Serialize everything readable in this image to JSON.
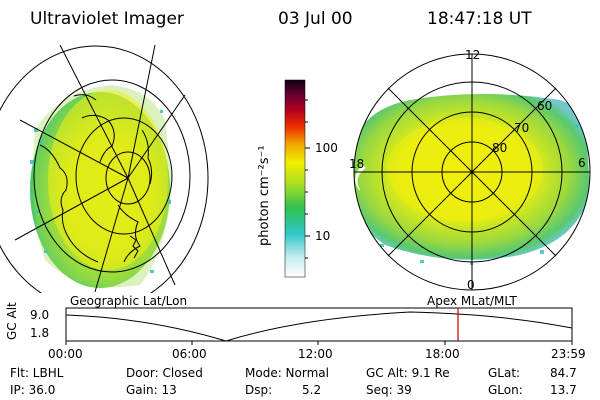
{
  "header": {
    "instrument": "Ultraviolet Imager",
    "date": "03 Jul 00",
    "time": "18:47:18 UT"
  },
  "left_panel": {
    "caption": "Geographic Lat/Lon"
  },
  "right_panel": {
    "caption": "Apex MLat/MLT",
    "mlt_labels": [
      "12",
      "18",
      "6",
      "0"
    ],
    "lat_labels": [
      "60",
      "70",
      "80"
    ]
  },
  "colorbar": {
    "unit_label": "photon cm⁻²s⁻¹",
    "ticks": [
      "100",
      "10"
    ]
  },
  "timeline": {
    "ylabel": "GC Alt",
    "yticks": [
      "9.0",
      "1.8"
    ],
    "xticks": [
      "00:00",
      "06:00",
      "12:00",
      "18:00",
      "23:59"
    ]
  },
  "footer": {
    "row1": [
      "Flt: LBHL",
      "Door: Closed",
      "Mode: Normal",
      "GC Alt: 9.1 Re",
      "GLat:",
      "84.7"
    ],
    "row2": [
      "IP: 36.0",
      "Gain: 13",
      "Dsp:",
      "5.2",
      "Seq: 39",
      "GLon:",
      "13.7"
    ]
  },
  "colors": {
    "marker": "#c00000",
    "axis": "#000000",
    "glow_yellow": "#f2f000",
    "glow_green": "#58d050",
    "glow_teal": "#40c0c0"
  }
}
